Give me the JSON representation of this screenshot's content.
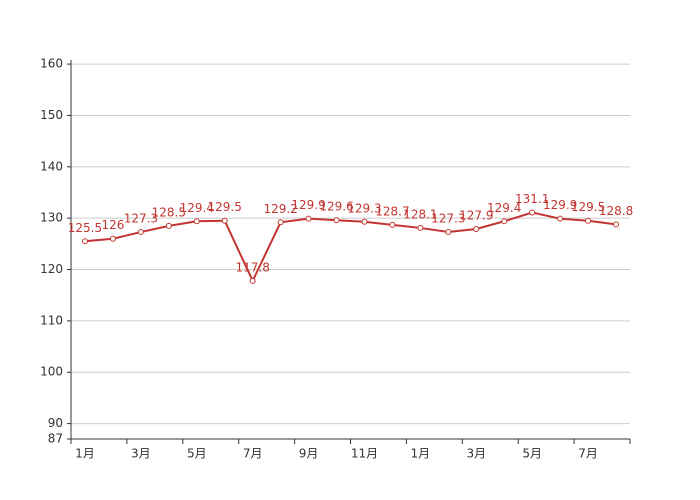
{
  "chart_data": {
    "type": "line",
    "categories": [
      "1月",
      null,
      "3月",
      null,
      "5月",
      null,
      "7月",
      null,
      "9月",
      null,
      "11月",
      null,
      "1月",
      null,
      "3月",
      null,
      "5月",
      null,
      "7月",
      null
    ],
    "series": [
      {
        "color": "#c23531",
        "values": [
          125.5,
          126,
          127.3,
          128.5,
          129.4,
          129.5,
          117.8,
          129.2,
          129.9,
          129.6,
          129.3,
          128.7,
          128.1,
          127.3,
          127.9,
          129.4,
          131.1,
          129.9,
          129.5,
          128.8
        ]
      }
    ],
    "ylim": [
      87,
      160.8
    ],
    "yticks": [
      87,
      90,
      100,
      110,
      120,
      130,
      140,
      150,
      160
    ],
    "grid": true
  }
}
